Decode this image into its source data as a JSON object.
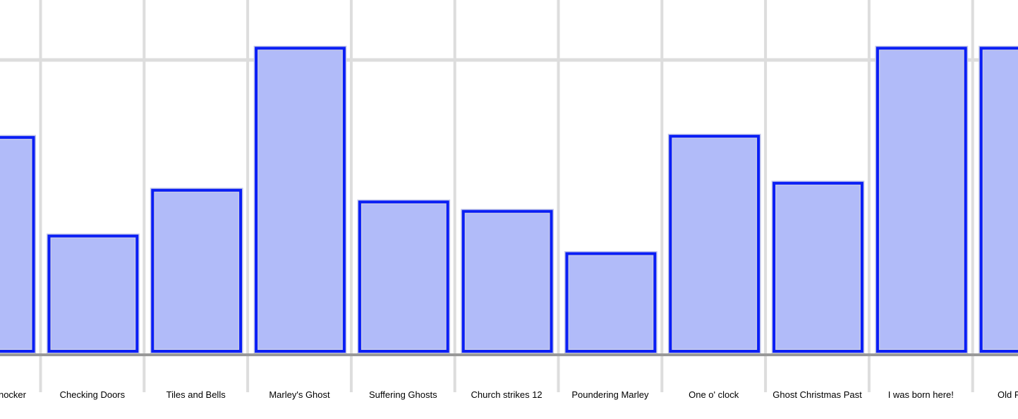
{
  "chart_data": {
    "type": "bar",
    "categories": [
      "nocker",
      "Checking Doors",
      "Tiles and Bells",
      "Marley's Ghost",
      "Suffering Ghosts",
      "Church strikes 12",
      "Poundering Marley",
      "One o' clock",
      "Ghost Christmas Past",
      "I was born here!",
      "Old F"
    ],
    "values": [
      368,
      200,
      278,
      520,
      258,
      242,
      170,
      370,
      290,
      520,
      520
    ],
    "ylim": [
      0,
      500
    ],
    "grid": true,
    "colors": {
      "bar_fill": "#b1bbf9",
      "bar_stroke": "#0a1ef5",
      "bar_outline": "#c5c9e8",
      "grid": "#dddddd",
      "baseline": "#999999",
      "text": "#000000"
    }
  }
}
